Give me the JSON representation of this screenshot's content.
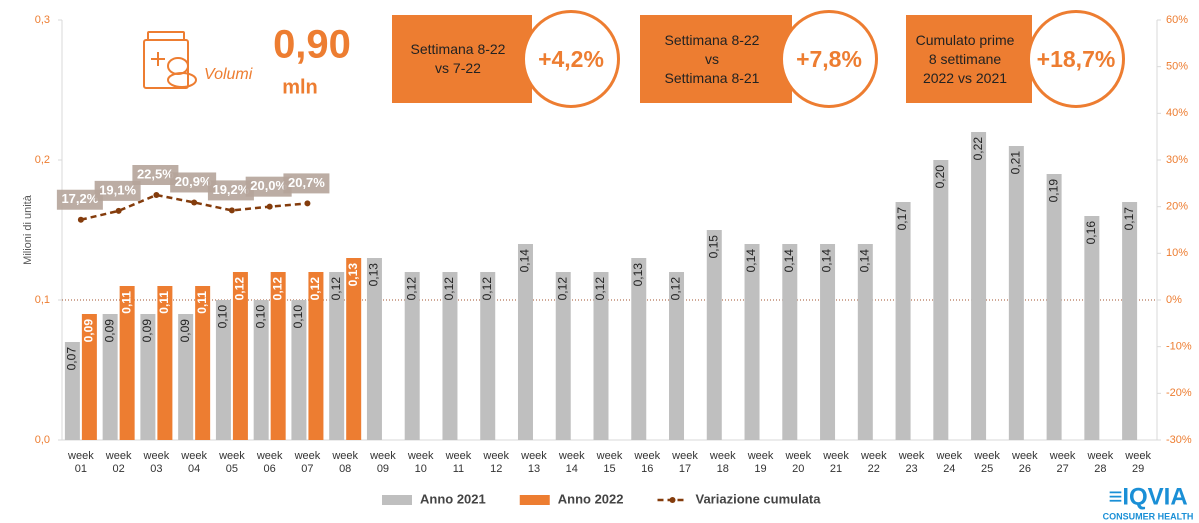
{
  "kpi": {
    "value": "0,90",
    "unit": "mln",
    "label": "Volumi"
  },
  "callouts": [
    {
      "lines": [
        "Settimana 8-22",
        "vs 7-22"
      ],
      "value": "+4,2%"
    },
    {
      "lines": [
        "Settimana 8-22",
        "vs",
        "Settimana 8-21"
      ],
      "value": "+7,8%"
    },
    {
      "lines": [
        "Cumulato prime",
        "8 settimane",
        "2022 vs 2021"
      ],
      "value": "+18,7%"
    }
  ],
  "brand": {
    "name": "≡IQVIA",
    "tagline": "CONSUMER HEALTH"
  },
  "chart_data": {
    "type": "bar",
    "ylabel": "Milioni di unità",
    "categories": [
      "week 01",
      "week 02",
      "week 03",
      "week 04",
      "week 05",
      "week 06",
      "week 07",
      "week 08",
      "week 09",
      "week 10",
      "week 11",
      "week 12",
      "week 13",
      "week 14",
      "week 15",
      "week 16",
      "week 17",
      "week 18",
      "week 19",
      "week 20",
      "week 21",
      "week 22",
      "week 23",
      "week 24",
      "week 25",
      "week 26",
      "week 27",
      "week 28",
      "week 29"
    ],
    "series": [
      {
        "name": "Anno 2021",
        "color": "#bfbfbf",
        "values": [
          0.07,
          0.09,
          0.09,
          0.09,
          0.1,
          0.1,
          0.1,
          0.12,
          0.13,
          0.12,
          0.12,
          0.12,
          0.14,
          0.12,
          0.12,
          0.13,
          0.12,
          0.15,
          0.14,
          0.14,
          0.14,
          0.14,
          0.17,
          0.2,
          0.22,
          0.21,
          0.19,
          0.16,
          0.17
        ],
        "value_labels": [
          "0,07",
          "0,09",
          "0,09",
          "0,09",
          "0,10",
          "0,10",
          "0,10",
          "0,12",
          "0,13",
          "0,12",
          "0,12",
          "0,12",
          "0,14",
          "0,12",
          "0,12",
          "0,13",
          "0,12",
          "0,15",
          "0,14",
          "0,14",
          "0,14",
          "0,14",
          "0,17",
          "0,20",
          "0,22",
          "0,21",
          "0,19",
          "0,16",
          "0,17"
        ]
      },
      {
        "name": "Anno 2022",
        "color": "#ed7d31",
        "values": [
          0.09,
          0.11,
          0.11,
          0.11,
          0.12,
          0.12,
          0.12,
          0.13,
          null,
          null,
          null,
          null,
          null,
          null,
          null,
          null,
          null,
          null,
          null,
          null,
          null,
          null,
          null,
          null,
          null,
          null,
          null,
          null,
          null
        ],
        "value_labels": [
          "0,09",
          "0,11",
          "0,11",
          "0,11",
          "0,12",
          "0,12",
          "0,12",
          "0,13",
          null,
          null,
          null,
          null,
          null,
          null,
          null,
          null,
          null,
          null,
          null,
          null,
          null,
          null,
          null,
          null,
          null,
          null,
          null,
          null,
          null
        ]
      },
      {
        "name": "Variazione cumulata",
        "type": "line",
        "axis": "y2",
        "color": "#843c0c",
        "values": [
          17.2,
          19.1,
          22.5,
          20.9,
          19.2,
          20.0,
          20.7,
          null,
          null,
          null,
          null,
          null,
          null,
          null,
          null,
          null,
          null,
          null,
          null,
          null,
          null,
          null,
          null,
          null,
          null,
          null,
          null,
          null,
          null
        ],
        "value_labels": [
          "17,2%",
          "19,1%",
          "22,5%",
          "20,9%",
          "19,2%",
          "20,0%",
          "20,7%",
          null,
          null,
          null,
          null,
          null,
          null,
          null,
          null,
          null,
          null,
          null,
          null,
          null,
          null,
          null,
          null,
          null,
          null,
          null,
          null,
          null,
          null
        ]
      }
    ],
    "ylim": [
      0,
      0.3
    ],
    "yticks": [
      {
        "value": 0,
        "label": "0,0"
      },
      {
        "value": 0.1,
        "label": "0,1"
      },
      {
        "value": 0.2,
        "label": "0,2"
      },
      {
        "value": 0.3,
        "label": "0,3"
      }
    ],
    "y2lim": [
      -30,
      60
    ],
    "y2ticks": [
      {
        "value": -30,
        "label": "-30%"
      },
      {
        "value": -20,
        "label": "-20%"
      },
      {
        "value": -10,
        "label": "-10%"
      },
      {
        "value": 0,
        "label": "0%"
      },
      {
        "value": 10,
        "label": "10%"
      },
      {
        "value": 20,
        "label": "20%"
      },
      {
        "value": 30,
        "label": "30%"
      },
      {
        "value": 40,
        "label": "40%"
      },
      {
        "value": 50,
        "label": "50%"
      },
      {
        "value": 60,
        "label": "60%"
      }
    ],
    "y2_reference_line": 0,
    "legend": "bottom"
  }
}
